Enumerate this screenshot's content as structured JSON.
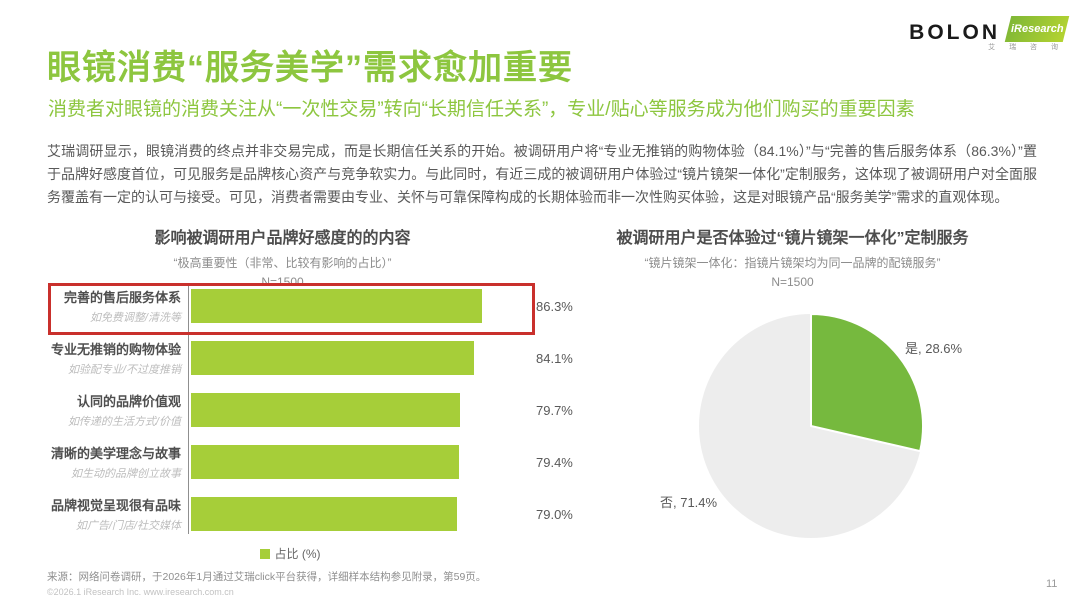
{
  "header": {
    "title": "眼镜消费“服务美学”需求愈加重要",
    "subtitle": "消费者对眼镜的消费关注从“一次性交易”转向“长期信任关系”，专业/贴心等服务成为他们购买的重要因素",
    "logo_bolon": "BOLON",
    "logo_iresearch": "iResearch",
    "logo_iresearch_cn": "艾 瑞 咨 询"
  },
  "body_paragraph": "艾瑞调研显示，眼镜消费的终点并非交易完成，而是长期信任关系的开始。被调研用户将“专业无推销的购物体验（84.1%）”与“完善的售后服务体系（86.3%）”置于品牌好感度首位，可见服务是品牌核心资产与竞争软实力。与此同时，有近三成的被调研用户体验过“镜片镜架一体化”定制服务，这体现了被调研用户对全面服务覆盖有一定的认可与接受。可见，消费者需要由专业、关怀与可靠保障构成的长期体验而非一次性购买体验，这是对眼镜产品“服务美学”需求的直观体现。",
  "colors": {
    "accent_green": "#8dc63f",
    "bar_green": "#a6ce39",
    "pie_green": "#76b93e",
    "pie_gray": "#ededed",
    "highlight_red": "#c9302c"
  },
  "chart_data": [
    {
      "type": "bar",
      "orientation": "horizontal",
      "title": "影响被调研用户品牌好感度的的内容",
      "subtitle": "“极高重要性（非常、比较有影响的占比）”",
      "sample_label": "N=1500",
      "categories": [
        "完善的售后服务体系",
        "专业无推销的购物体验",
        "认同的品牌价值观",
        "清晰的美学理念与故事",
        "品牌视觉呈现很有品味"
      ],
      "category_notes": [
        "如免费调整/清洗等",
        "如验配专业/不过度推销",
        "如传递的生活方式/价值",
        "如生动的品牌创立故事",
        "如广告/门店/社交媒体"
      ],
      "values": [
        86.3,
        84.1,
        79.7,
        79.4,
        79.0
      ],
      "value_labels": [
        "86.3%",
        "84.1%",
        "79.7%",
        "79.4%",
        "79.0%"
      ],
      "xlim": [
        0,
        100
      ],
      "legend": "占比 (%)",
      "legend_position": "bottom",
      "grid": false,
      "highlighted_index": 0,
      "bar_color": "#a6ce39"
    },
    {
      "type": "pie",
      "title": "被调研用户是否体验过“镜片镜架一体化”定制服务",
      "subtitle": "“镜片镜架一体化：指镜片镜架均为同一品牌的配镜服务”",
      "sample_label": "N=1500",
      "start_angle_deg": 0,
      "direction": "clockwise",
      "slices": [
        {
          "label": "是",
          "value": 28.6,
          "display": "是, 28.6%",
          "color": "#76b93e"
        },
        {
          "label": "否",
          "value": 71.4,
          "display": "否, 71.4%",
          "color": "#ededed"
        }
      ]
    }
  ],
  "footer": {
    "source": "来源：网络问卷调研，于2026年1月通过艾瑞click平台获得，详细样本结构参见附录，第59页。",
    "copyright": "©2026.1 iResearch Inc.    www.iresearch.com.cn",
    "page_number": "11"
  }
}
